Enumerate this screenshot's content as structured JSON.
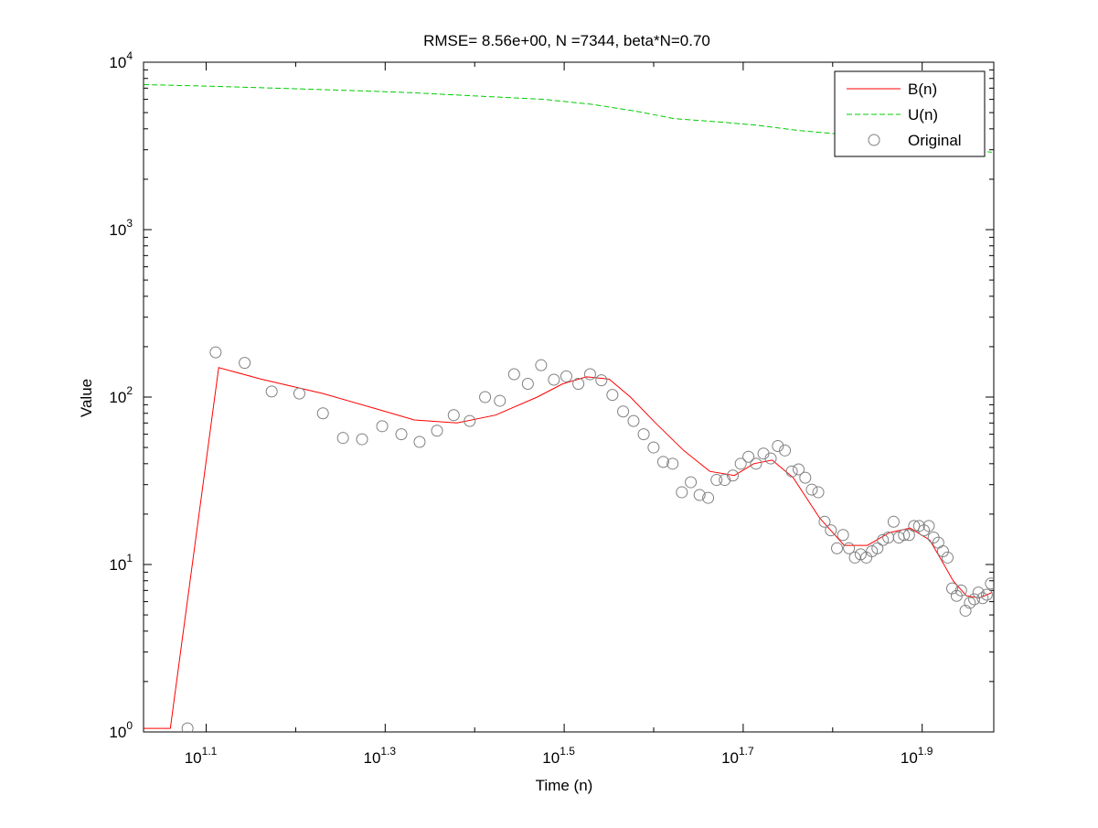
{
  "chart_data": {
    "type": "line",
    "title": "RMSE= 8.56e+00, N =7344, beta*N=0.70",
    "xlabel": "Time (n)",
    "ylabel": "Value",
    "xscale": "log",
    "yscale": "log",
    "xlim_log10": [
      1.03,
      1.98
    ],
    "ylim": [
      1,
      10000
    ],
    "grid": false,
    "legend_position": "top-right",
    "x_ticks": [
      {
        "base": "10",
        "exp": "1.1",
        "log10": 1.1
      },
      {
        "base": "10",
        "exp": "1.3",
        "log10": 1.3
      },
      {
        "base": "10",
        "exp": "1.5",
        "log10": 1.5
      },
      {
        "base": "10",
        "exp": "1.7",
        "log10": 1.7
      },
      {
        "base": "10",
        "exp": "1.9",
        "log10": 1.9
      }
    ],
    "y_ticks": [
      {
        "base": "10",
        "exp": "0",
        "value": 1
      },
      {
        "base": "10",
        "exp": "1",
        "value": 10
      },
      {
        "base": "10",
        "exp": "2",
        "value": 100
      },
      {
        "base": "10",
        "exp": "3",
        "value": 1000
      },
      {
        "base": "10",
        "exp": "4",
        "value": 10000
      }
    ],
    "series": [
      {
        "name": "B(n)",
        "style": "line",
        "color": "#ff0000",
        "x": [
          10.72,
          11.48,
          13.0,
          14.5,
          17.0,
          19.5,
          21.5,
          24.0,
          26.5,
          29.5,
          31.5,
          33.5,
          35.5,
          37.5,
          40.0,
          43.0,
          46.0,
          49.0,
          51.5,
          54.0,
          57.0,
          61.0,
          65.0,
          69.0,
          73.0,
          77.0,
          81.0,
          84.0,
          86.0,
          89.0,
          92.0,
          95.0
        ],
        "y": [
          1.05,
          1.05,
          150,
          128,
          105,
          85,
          73,
          70,
          78,
          100,
          120,
          132,
          128,
          100,
          70,
          48,
          36,
          34,
          40,
          42,
          33,
          19,
          13,
          13,
          15.5,
          16.5,
          14,
          10,
          8,
          6.5,
          6.3,
          6.8
        ]
      },
      {
        "name": "U(n)",
        "style": "dashed",
        "color": "#00cc00",
        "x": [
          10.72,
          12.6,
          15.0,
          18.0,
          21.0,
          25.0,
          30.0,
          34.0,
          38.0,
          42.0,
          47.0,
          52.0,
          58.0,
          65.0,
          72.0,
          76.0,
          80.0,
          86.0,
          95.0
        ],
        "y": [
          7344,
          7200,
          7000,
          6800,
          6600,
          6300,
          6000,
          5600,
          5100,
          4600,
          4400,
          4200,
          3900,
          3700,
          3550,
          3450,
          3300,
          3100,
          2900
        ]
      },
      {
        "name": "Original",
        "style": "markers",
        "color": "#808080",
        "x": [
          12.0,
          12.9,
          13.9,
          14.9,
          16.0,
          17.0,
          17.9,
          18.8,
          19.8,
          20.8,
          21.8,
          22.8,
          23.8,
          24.8,
          25.8,
          26.8,
          27.8,
          28.8,
          29.8,
          30.8,
          31.8,
          32.8,
          33.8,
          34.8,
          35.8,
          36.8,
          37.8,
          38.8,
          39.8,
          40.8,
          41.8,
          42.8,
          43.8,
          44.8,
          45.8,
          46.8,
          47.8,
          48.8,
          49.8,
          50.8,
          51.8,
          52.8,
          53.8,
          54.8,
          55.8,
          56.8,
          57.8,
          58.8,
          59.8,
          60.8,
          61.8,
          62.8,
          63.8,
          64.8,
          65.8,
          66.8,
          67.8,
          68.8,
          69.8,
          70.8,
          71.8,
          72.8,
          73.8,
          74.8,
          75.8,
          76.8,
          77.8,
          78.8,
          79.8,
          80.8,
          81.8,
          82.8,
          83.8,
          84.8,
          85.8,
          86.8,
          87.8,
          88.8,
          89.8,
          90.8,
          91.8,
          92.8,
          93.8,
          94.8
        ],
        "y": [
          1.05,
          185,
          160,
          108,
          105,
          80,
          57,
          56,
          67,
          60,
          54,
          63,
          78,
          72,
          100,
          95,
          137,
          120,
          155,
          127,
          133,
          120,
          137,
          126,
          103,
          82,
          72,
          60,
          50,
          41,
          40,
          27,
          31,
          26,
          25,
          32,
          32,
          34,
          40,
          44,
          40,
          46,
          43,
          51,
          48,
          36,
          37,
          33,
          28,
          27,
          18,
          16,
          12.5,
          15,
          12.5,
          11,
          11.5,
          11,
          12,
          12.5,
          14,
          14.5,
          18,
          14.5,
          15,
          15,
          17,
          17,
          16,
          17,
          14.5,
          13.5,
          12,
          11,
          7.2,
          6.5,
          7,
          5.3,
          5.9,
          6.2,
          6.8,
          6.3,
          6.6,
          7.7
        ]
      }
    ]
  }
}
